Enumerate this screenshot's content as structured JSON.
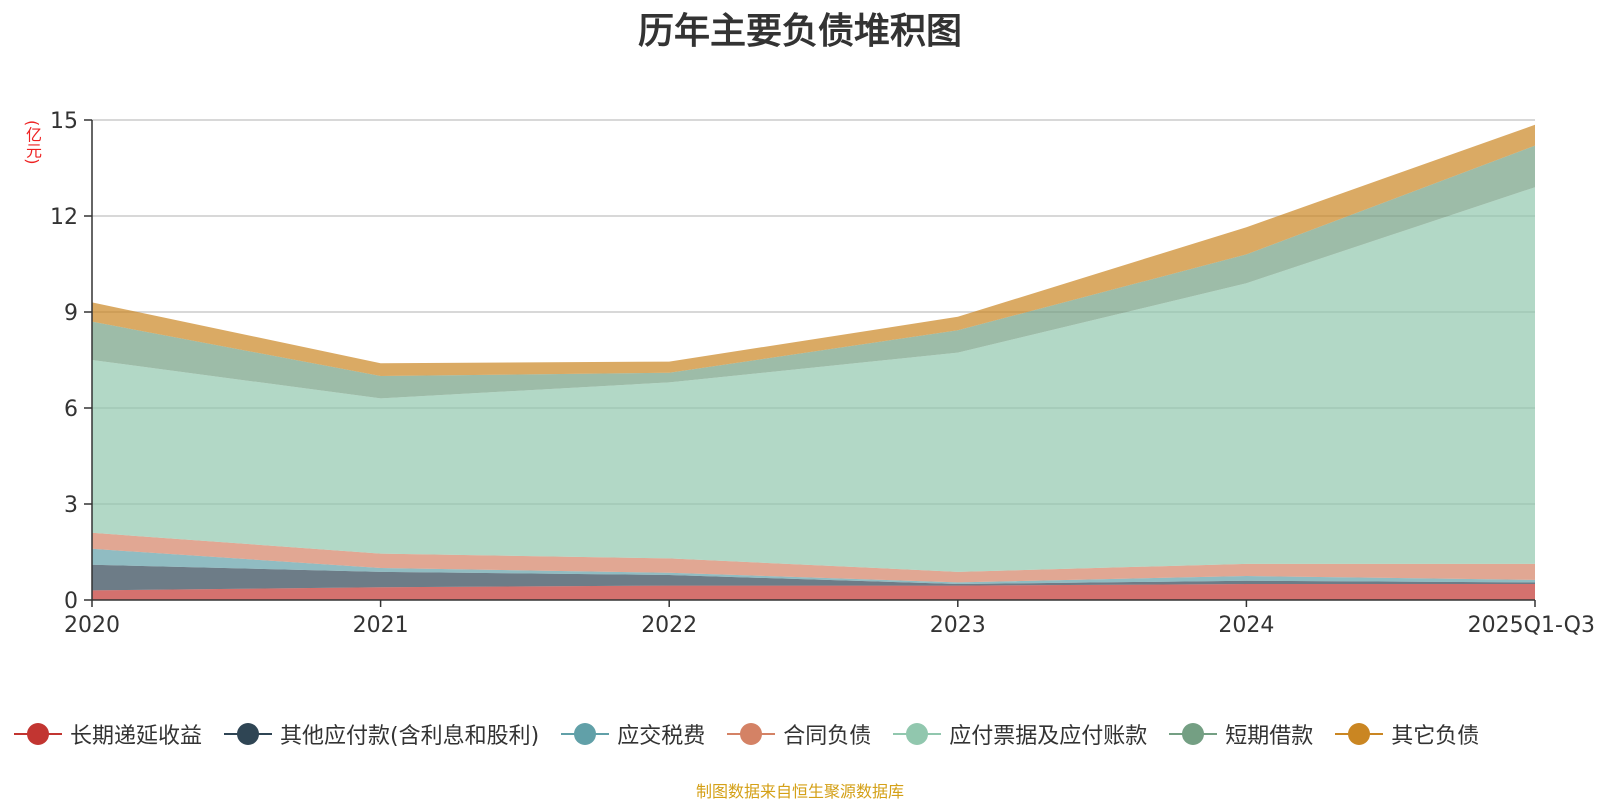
{
  "chart_data": {
    "type": "area",
    "stacked": true,
    "title": "历年主要负债堆积图",
    "y_unit": "(亿元)",
    "categories": [
      "2020",
      "2021",
      "2022",
      "2023",
      "2024",
      "2025Q1-Q3"
    ],
    "ylim": [
      0,
      15
    ],
    "yticks": [
      0,
      3,
      6,
      9,
      12,
      15
    ],
    "grid": true,
    "legend_position": "bottom",
    "series": [
      {
        "name": "长期递延收益",
        "color": "#c23531",
        "values": [
          0.3,
          0.4,
          0.45,
          0.45,
          0.5,
          0.5
        ]
      },
      {
        "name": "其他应付款(含利息和股利)",
        "color": "#2f4554",
        "values": [
          0.8,
          0.48,
          0.33,
          0.05,
          0.1,
          0.05
        ]
      },
      {
        "name": "应交税费",
        "color": "#61a0a8",
        "values": [
          0.5,
          0.12,
          0.07,
          0.05,
          0.15,
          0.08
        ]
      },
      {
        "name": "合同负债",
        "color": "#d48265",
        "values": [
          0.5,
          0.45,
          0.45,
          0.33,
          0.38,
          0.5
        ]
      },
      {
        "name": "应付票据及应付账款",
        "color": "#91c7ae",
        "values": [
          5.4,
          4.85,
          5.5,
          6.85,
          8.77,
          11.77
        ]
      },
      {
        "name": "短期借款",
        "color": "#749f83",
        "values": [
          1.2,
          0.7,
          0.3,
          0.7,
          0.9,
          1.3
        ]
      },
      {
        "name": "其它负债",
        "color": "#ca8622",
        "values": [
          0.6,
          0.4,
          0.35,
          0.42,
          0.85,
          0.65
        ]
      }
    ]
  },
  "source_note": "制图数据来自恒生聚源数据库"
}
